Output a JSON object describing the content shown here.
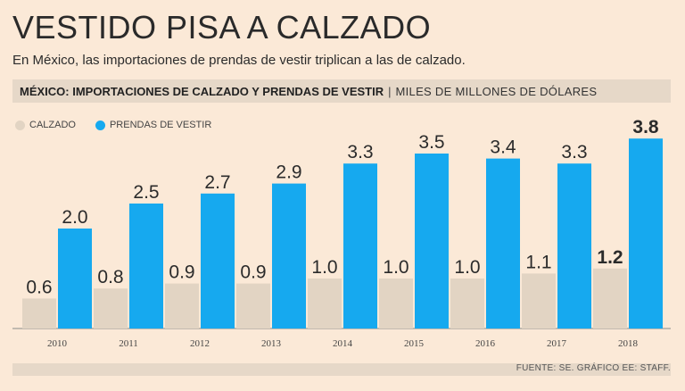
{
  "header": {
    "title": "VESTIDO PISA A CALZADO",
    "subtitle": "En México, las importaciones de prendas de vestir triplican a las de calzado.",
    "band_strong": "MÉXICO: IMPORTACIONES DE CALZADO Y PRENDAS DE VESTIR",
    "band_sep": "|",
    "band_light": "MILES DE MILLONES DE DÓLARES"
  },
  "legend": {
    "calzado": "CALZADO",
    "prendas": "PRENDAS DE VESTIR"
  },
  "colors": {
    "calzado": "#e2d4c3",
    "prendas": "#16a9ef",
    "background": "#fbe9d7"
  },
  "footer": {
    "source": "FUENTE: SE. GRÁFICO EE: STAFF."
  },
  "chart_data": {
    "type": "bar",
    "title": "MÉXICO: IMPORTACIONES DE CALZADO Y PRENDAS DE VESTIR",
    "ylabel": "MILES DE MILLONES DE DÓLARES",
    "xlabel": "",
    "categories": [
      "2010",
      "2011",
      "2012",
      "2013",
      "2014",
      "2015",
      "2016",
      "2017",
      "2018"
    ],
    "series": [
      {
        "name": "CALZADO",
        "values": [
          0.6,
          0.8,
          0.9,
          0.9,
          1.0,
          1.0,
          1.0,
          1.1,
          1.2
        ],
        "labels": [
          "0.6",
          "0.8",
          "0.9",
          "0.9",
          "1.0",
          "1.0",
          "1.0",
          "1.1",
          "1.2"
        ]
      },
      {
        "name": "PRENDAS DE VESTIR",
        "values": [
          2.0,
          2.5,
          2.7,
          2.9,
          3.3,
          3.5,
          3.4,
          3.3,
          3.8
        ],
        "labels": [
          "2.0",
          "2.5",
          "2.7",
          "2.9",
          "3.3",
          "3.5",
          "3.4",
          "3.3",
          "3.8"
        ]
      }
    ],
    "ylim": [
      0,
      3.8
    ],
    "highlight_category": "2018",
    "grid": false
  }
}
